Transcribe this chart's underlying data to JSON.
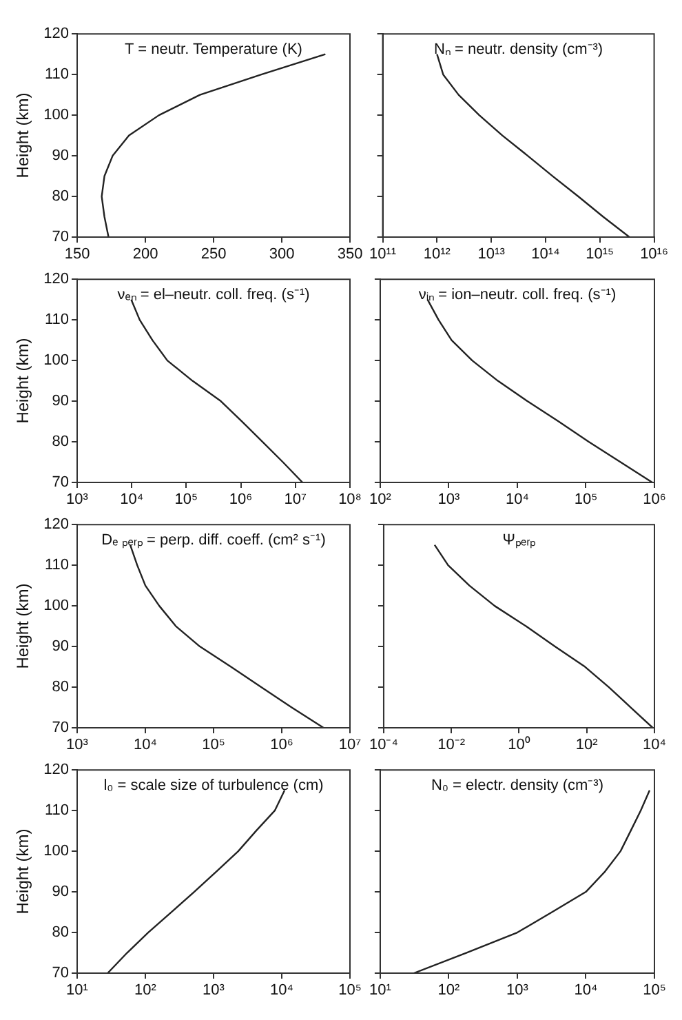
{
  "chart_data": [
    {
      "type": "line",
      "annotations": [
        "T = neutr. Temperature (K)"
      ],
      "ylabel": "Height (km)",
      "color": "#222222",
      "x": [
        332,
        285,
        240,
        210,
        188,
        176,
        170,
        168,
        170,
        173
      ],
      "values": [
        115,
        110,
        105,
        100,
        95,
        90,
        85,
        80,
        75,
        70
      ],
      "xlim": [
        150,
        350
      ],
      "xticks": [
        150,
        200,
        250,
        300,
        350
      ],
      "ylim": [
        70,
        120
      ],
      "yticks": [
        70,
        80,
        90,
        100,
        110,
        120
      ]
    },
    {
      "type": "line",
      "annotations": [
        "Nₙ = neutr. density (cm⁻³)"
      ],
      "color": "#222222",
      "x": [
        1000000000000.0,
        1300000000000.0,
        2500000000000.0,
        6000000000000.0,
        16000000000000.0,
        47000000000000.0,
        135000000000000.0,
        400000000000000.0,
        1150000000000000.0,
        3500000000000000.0
      ],
      "values": [
        115,
        110,
        105,
        100,
        95,
        90,
        85,
        80,
        75,
        70
      ],
      "log": "x",
      "xlim": [
        100000000000.0,
        1e+16
      ],
      "xticks": [
        {
          "value": 100000000000.0,
          "label": "10¹¹"
        },
        {
          "value": 1000000000000.0,
          "label": "10¹²"
        },
        {
          "value": 10000000000000.0,
          "label": "10¹³"
        },
        {
          "value": 100000000000000.0,
          "label": "10¹⁴"
        },
        {
          "value": 1000000000000000.0,
          "label": "10¹⁵"
        },
        {
          "value": 1e+16,
          "label": "10¹⁶"
        }
      ],
      "ylim": [
        70,
        120
      ],
      "yticks": [
        70,
        80,
        90,
        100,
        110,
        120
      ],
      "tick_labels": "x"
    },
    {
      "type": "line",
      "annotations": [
        "νₑₙ = el–neutr. coll. freq. (s⁻¹)"
      ],
      "ylabel": "Height (km)",
      "color": "#222222",
      "x": [
        9800,
        14000,
        24000,
        45000,
        130000,
        430000,
        1050000,
        2500000,
        5900000,
        13500000
      ],
      "values": [
        115,
        110,
        105,
        100,
        95,
        90,
        85,
        80,
        75,
        70
      ],
      "log": "x",
      "xlim": [
        1000.0,
        100000000.0
      ],
      "xticks": [
        {
          "value": 1000.0,
          "label": "10³"
        },
        {
          "value": 10000.0,
          "label": "10⁴"
        },
        {
          "value": 100000.0,
          "label": "10⁵"
        },
        {
          "value": 1000000.0,
          "label": "10⁶"
        },
        {
          "value": 10000000.0,
          "label": "10⁷"
        },
        {
          "value": 100000000.0,
          "label": "10⁸"
        }
      ],
      "ylim": [
        70,
        120
      ],
      "yticks": [
        70,
        80,
        90,
        100,
        110,
        120
      ]
    },
    {
      "type": "line",
      "annotations": [
        "νᵢₙ = ion–neutr. coll. freq. (s⁻¹)"
      ],
      "color": "#222222",
      "x": [
        490,
        710,
        1100,
        2200,
        5200,
        14000,
        40000,
        110000,
        320000,
        930000
      ],
      "values": [
        115,
        110,
        105,
        100,
        95,
        90,
        85,
        80,
        75,
        70
      ],
      "log": "x",
      "xlim": [
        100.0,
        1000000.0
      ],
      "xticks": [
        {
          "value": 100.0,
          "label": "10²"
        },
        {
          "value": 1000.0,
          "label": "10³"
        },
        {
          "value": 10000.0,
          "label": "10⁴"
        },
        {
          "value": 100000.0,
          "label": "10⁵"
        },
        {
          "value": 1000000.0,
          "label": "10⁶"
        }
      ],
      "ylim": [
        70,
        120
      ],
      "yticks": [
        70,
        80,
        90,
        100,
        110,
        120
      ],
      "tick_labels": "x"
    },
    {
      "type": "line",
      "annotations": [
        "Dₑ ₚₑᵣₚ = perp. diff. coeff. (cm² s⁻¹)"
      ],
      "ylabel": "Height (km)",
      "color": "#222222",
      "x": [
        6000,
        7600,
        10000,
        16000,
        28000,
        63000,
        180000,
        500000,
        1400000,
        4100000
      ],
      "values": [
        115,
        110,
        105,
        100,
        95,
        90,
        85,
        80,
        75,
        70
      ],
      "log": "x",
      "xlim": [
        1000.0,
        10000000.0
      ],
      "xticks": [
        {
          "value": 1000.0,
          "label": "10³"
        },
        {
          "value": 10000.0,
          "label": "10⁴"
        },
        {
          "value": 100000.0,
          "label": "10⁵"
        },
        {
          "value": 1000000.0,
          "label": "10⁶"
        },
        {
          "value": 10000000.0,
          "label": "10⁷"
        }
      ],
      "ylim": [
        70,
        120
      ],
      "yticks": [
        70,
        80,
        90,
        100,
        110,
        120
      ]
    },
    {
      "type": "line",
      "annotations": [
        "Ψₚₑᵣₚ"
      ],
      "color": "#222222",
      "x": [
        0.0032,
        0.008,
        0.034,
        0.19,
        1.6,
        11.5,
        89,
        450,
        2000,
        8900
      ],
      "values": [
        115,
        110,
        105,
        100,
        95,
        90,
        85,
        80,
        75,
        70
      ],
      "log": "x",
      "xlim": [
        0.0001,
        10000.0
      ],
      "xticks": [
        {
          "value": 0.0001,
          "label": "10⁻⁴"
        },
        {
          "value": 0.01,
          "label": "10⁻²"
        },
        {
          "value": 1,
          "label": "10⁰"
        },
        {
          "value": 100.0,
          "label": "10²"
        },
        {
          "value": 10000.0,
          "label": "10⁴"
        }
      ],
      "ylim": [
        70,
        120
      ],
      "yticks": [
        70,
        80,
        90,
        100,
        110,
        120
      ],
      "tick_labels": "x"
    },
    {
      "type": "line",
      "annotations": [
        "l₀ = scale size of turbulence (cm)"
      ],
      "ylabel": "Height (km)",
      "color": "#222222",
      "x": [
        11000,
        7900,
        4200,
        2300,
        1100,
        520,
        240,
        110,
        54,
        28
      ],
      "values": [
        115,
        110,
        105,
        100,
        95,
        90,
        85,
        80,
        75,
        70
      ],
      "log": "x",
      "xlim": [
        10.0,
        100000.0
      ],
      "xticks": [
        {
          "value": 10.0,
          "label": "10¹"
        },
        {
          "value": 100.0,
          "label": "10²"
        },
        {
          "value": 1000.0,
          "label": "10³"
        },
        {
          "value": 10000.0,
          "label": "10⁴"
        },
        {
          "value": 100000.0,
          "label": "10⁵"
        }
      ],
      "ylim": [
        70,
        120
      ],
      "yticks": [
        70,
        80,
        90,
        100,
        110,
        120
      ]
    },
    {
      "type": "line",
      "annotations": [
        "N₀ = electr. density (cm⁻³)"
      ],
      "color": "#222222",
      "x": [
        85000,
        63000,
        45000,
        32000,
        19000,
        10000,
        3200,
        1000,
        180,
        31
      ],
      "values": [
        115,
        110,
        105,
        100,
        95,
        90,
        85,
        80,
        75,
        70
      ],
      "log": "x",
      "xlim": [
        10.0,
        100000.0
      ],
      "xticks": [
        {
          "value": 10.0,
          "label": "10¹"
        },
        {
          "value": 100.0,
          "label": "10²"
        },
        {
          "value": 1000.0,
          "label": "10³"
        },
        {
          "value": 10000.0,
          "label": "10⁴"
        },
        {
          "value": 100000.0,
          "label": "10⁵"
        }
      ],
      "ylim": [
        70,
        120
      ],
      "yticks": [
        70,
        80,
        90,
        100,
        110,
        120
      ],
      "tick_labels": "x"
    }
  ]
}
